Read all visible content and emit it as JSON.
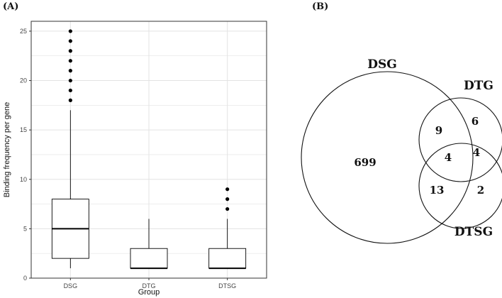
{
  "panels": {
    "a_label": "(A)",
    "b_label": "(B)"
  },
  "chart_data": [
    {
      "type": "box",
      "xlabel": "Group",
      "ylabel": "Binding frequency per gene",
      "ylim": [
        0,
        26
      ],
      "yticks": [
        0,
        5,
        10,
        15,
        20,
        25
      ],
      "grid": true,
      "categories": [
        "DSG",
        "DTG",
        "DTSG"
      ],
      "boxes": [
        {
          "name": "DSG",
          "whisker_low": 1,
          "q1": 2,
          "median": 5,
          "q3": 8,
          "whisker_high": 17,
          "outliers": [
            18,
            19,
            20,
            21,
            22,
            23,
            24,
            25
          ]
        },
        {
          "name": "DTG",
          "whisker_low": 1,
          "q1": 1,
          "median": 1,
          "q3": 3,
          "whisker_high": 6,
          "outliers": []
        },
        {
          "name": "DTSG",
          "whisker_low": 1,
          "q1": 1,
          "median": 1,
          "q3": 3,
          "whisker_high": 6,
          "outliers": [
            7,
            8,
            9
          ]
        }
      ],
      "colors": {
        "box_fill": "#ffffff",
        "stroke": "#000000",
        "grid": "#e3e3e3",
        "frame": "#333333"
      }
    },
    {
      "type": "venn",
      "sets": [
        "DSG",
        "DTG",
        "DTSG"
      ],
      "regions": [
        {
          "sets": [
            "DSG"
          ],
          "count": 699
        },
        {
          "sets": [
            "DSG",
            "DTG"
          ],
          "count": 9
        },
        {
          "sets": [
            "DTG"
          ],
          "count": 6
        },
        {
          "sets": [
            "DSG",
            "DTG",
            "DTSG"
          ],
          "count": 4
        },
        {
          "sets": [
            "DTG",
            "DTSG"
          ],
          "count": 4
        },
        {
          "sets": [
            "DSG",
            "DTSG"
          ],
          "count": 13
        },
        {
          "sets": [
            "DTSG"
          ],
          "count": 2
        }
      ]
    }
  ]
}
